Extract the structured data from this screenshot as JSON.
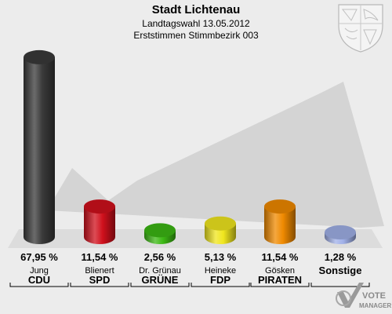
{
  "header": {
    "title": "Stadt Lichtenau",
    "subtitle_1": "Landtagswahl 13.05.2012",
    "subtitle_2": "Erststimmen Stimmbezirk 003"
  },
  "colors": {
    "background": "#ececec",
    "floor": "#dcdcdc",
    "backdrop_check": "#d0d0d0"
  },
  "chart_data": {
    "type": "bar",
    "title": "Stadt Lichtenau",
    "subtitle": "Landtagswahl 13.05.2012 / Erststimmen Stimmbezirk 003",
    "categories": [
      "CDU",
      "SPD",
      "GRÜNE",
      "FDP",
      "PIRATEN",
      "Sonstige"
    ],
    "candidates": [
      "Jung",
      "Blienert",
      "Dr. Grünau",
      "Heineke",
      "Gösken",
      ""
    ],
    "values": [
      67.95,
      11.54,
      2.56,
      5.13,
      11.54,
      1.28
    ],
    "value_labels": [
      "67,95 %",
      "11,54 %",
      "2,56 %",
      "5,13 %",
      "11,54 %",
      "1,28 %"
    ],
    "colors": [
      "#3a3a3a",
      "#d0101c",
      "#3cb814",
      "#f0e61e",
      "#f08a00",
      "#a0b0e8"
    ],
    "ylim": [
      0,
      70
    ],
    "grid": false,
    "legend": "none"
  },
  "footer": {
    "logo_text_1": "VOTE",
    "logo_text_2": "MANAGER"
  }
}
